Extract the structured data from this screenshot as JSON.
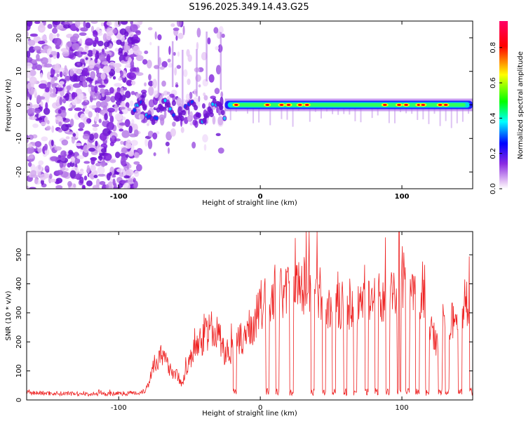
{
  "title": "S196.2025.349.14.43.G25",
  "chart_data": [
    {
      "type": "heatmap",
      "title": "S196.2025.349.14.43.G25",
      "xlabel": "Height of straight line (km)",
      "ylabel": "Frequency (Hz)",
      "xlim": [
        -165,
        150
      ],
      "ylim": [
        -25,
        25
      ],
      "x_ticks": [
        -100,
        0,
        100
      ],
      "y_ticks": [
        -20,
        -10,
        0,
        10,
        20
      ],
      "colorbar": {
        "label": "Normalized spectral amplitude",
        "range": [
          0,
          0.95
        ],
        "ticks": [
          0.0,
          0.2,
          0.4,
          0.6,
          0.8
        ],
        "tick_labels": [
          "0.0",
          "0.2",
          "0.4",
          "0.6",
          "0.8"
        ],
        "colors": [
          "#ffffff",
          "#e6c8f5",
          "#8a2be2",
          "#0000ff",
          "#00ffff",
          "#00ff00",
          "#ffff00",
          "#ff0000",
          "#ff0066"
        ]
      },
      "noise_region": {
        "x": [
          -165,
          -85
        ],
        "y": [
          -25,
          25
        ]
      },
      "scattered_region": {
        "x": [
          -85,
          -25
        ],
        "y": [
          -15,
          25
        ]
      },
      "signal_band": {
        "x": [
          -25,
          150
        ],
        "freq_hz": 0,
        "hot_spots_km": [
          -17,
          5,
          15,
          20,
          28,
          33,
          88,
          98,
          103,
          112,
          115,
          127,
          131
        ]
      },
      "wavy_trace": {
        "x": [
          -90,
          -25
        ],
        "freq_hz": -2
      }
    },
    {
      "type": "line",
      "xlabel": "Height of straight line (km)",
      "ylabel": "SNR (10 * v/v)",
      "xlim": [
        -165,
        150
      ],
      "ylim": [
        0,
        580
      ],
      "x_ticks": [
        -100,
        0,
        100
      ],
      "y_ticks": [
        0,
        100,
        200,
        300,
        400,
        500
      ],
      "series": [
        {
          "name": "SNR",
          "color": "#ee2222",
          "x": [
            -165,
            -140,
            -120,
            -100,
            -85,
            -80,
            -75,
            -70,
            -60,
            -55,
            -50,
            -45,
            -40,
            -35,
            -30,
            -25,
            -20,
            -15,
            -10,
            -5,
            0,
            5,
            10,
            15,
            20,
            30,
            40,
            45,
            50,
            60,
            70,
            75,
            80,
            90,
            100,
            105,
            110,
            115,
            118,
            122,
            126,
            130,
            135,
            140,
            145,
            150
          ],
          "y": [
            25,
            22,
            20,
            22,
            25,
            40,
            130,
            150,
            90,
            60,
            130,
            180,
            220,
            240,
            230,
            160,
            170,
            200,
            230,
            260,
            320,
            350,
            370,
            360,
            380,
            400,
            390,
            360,
            300,
            330,
            350,
            370,
            360,
            340,
            420,
            380,
            350,
            380,
            340,
            220,
            200,
            240,
            260,
            300,
            340,
            360
          ],
          "dropouts_km": [
            -18,
            5,
            12,
            22,
            37,
            45,
            52,
            60,
            67,
            75,
            82,
            90,
            98,
            104,
            111,
            118,
            127,
            132,
            141,
            149
          ],
          "peak": {
            "x": 98,
            "y": 580
          }
        }
      ]
    }
  ]
}
